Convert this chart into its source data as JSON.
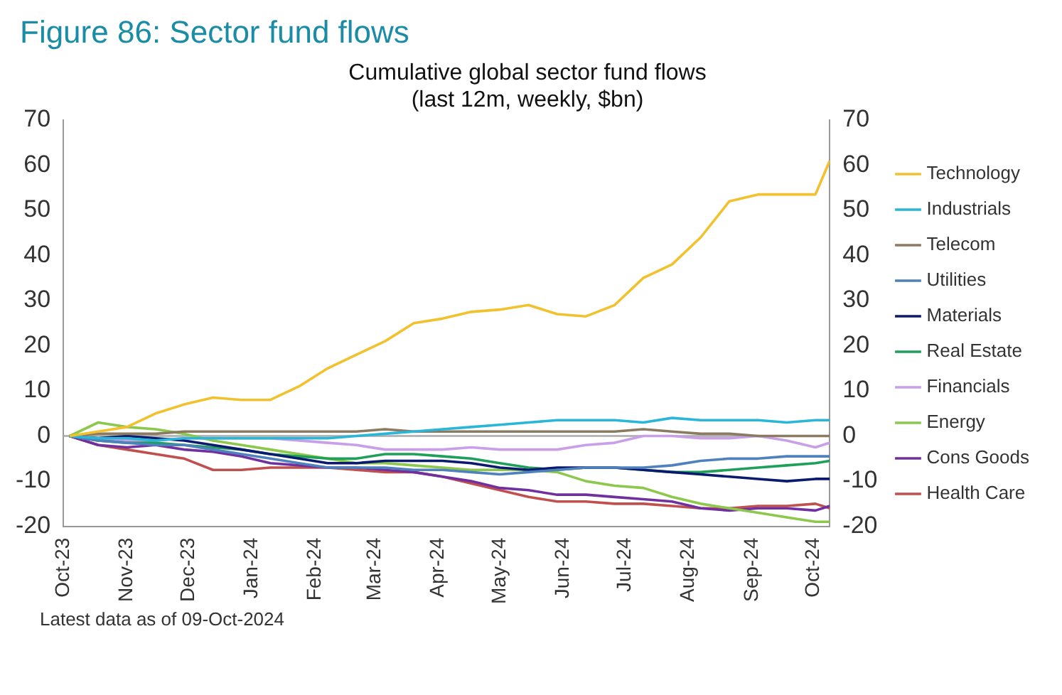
{
  "chart_data": {
    "type": "line",
    "title": "Figure 86: Sector fund flows",
    "subtitle": "Cumulative global sector fund flows\n(last 12m, weekly, $bn)",
    "annotations": [
      "Latest data as of 09-Oct-2024"
    ],
    "x": [
      "2023-10-04",
      "2023-10-18",
      "2023-11-01",
      "2023-11-15",
      "2023-11-29",
      "2023-12-13",
      "2023-12-27",
      "2024-01-10",
      "2024-01-24",
      "2024-02-07",
      "2024-02-21",
      "2024-03-06",
      "2024-03-20",
      "2024-04-03",
      "2024-04-17",
      "2024-05-01",
      "2024-05-15",
      "2024-05-29",
      "2024-06-12",
      "2024-06-26",
      "2024-07-10",
      "2024-07-24",
      "2024-08-07",
      "2024-08-21",
      "2024-09-04",
      "2024-09-18",
      "2024-10-02",
      "2024-10-09"
    ],
    "xlim": [
      "2023-10-01",
      "2024-10-09"
    ],
    "xticks": [
      {
        "value": "2023-10-01",
        "label": "Oct-23"
      },
      {
        "value": "2023-11-01",
        "label": "Nov-23"
      },
      {
        "value": "2023-12-01",
        "label": "Dec-23"
      },
      {
        "value": "2024-01-01",
        "label": "Jan-24"
      },
      {
        "value": "2024-02-01",
        "label": "Feb-24"
      },
      {
        "value": "2024-03-01",
        "label": "Mar-24"
      },
      {
        "value": "2024-04-01",
        "label": "Apr-24"
      },
      {
        "value": "2024-05-01",
        "label": "May-24"
      },
      {
        "value": "2024-06-01",
        "label": "Jun-24"
      },
      {
        "value": "2024-07-01",
        "label": "Jul-24"
      },
      {
        "value": "2024-08-01",
        "label": "Aug-24"
      },
      {
        "value": "2024-09-01",
        "label": "Sep-24"
      },
      {
        "value": "2024-10-01",
        "label": "Oct-24"
      }
    ],
    "ylim": [
      -20,
      70
    ],
    "yticks": [
      -20,
      -10,
      0,
      10,
      20,
      30,
      40,
      50,
      60,
      70
    ],
    "y2lim": [
      -20,
      70
    ],
    "y2ticks": [
      -20,
      -10,
      0,
      10,
      20,
      30,
      40,
      50,
      60,
      70
    ],
    "grid": false,
    "legend": "right",
    "marker": "none",
    "line_style": "solid",
    "ref_lines": [
      {
        "axis": "y",
        "value": 0,
        "color": "#aaaaaa"
      }
    ],
    "series": [
      {
        "name": "Technology",
        "color": "#f2c12e",
        "values": [
          0,
          1,
          2,
          5,
          7,
          8.5,
          8,
          8,
          11,
          15,
          18,
          21,
          25,
          26,
          27.5,
          28,
          29,
          27,
          26.5,
          29,
          35,
          38,
          44,
          52,
          53.5,
          53.5,
          53.5,
          61
        ]
      },
      {
        "name": "Industrials",
        "color": "#29b6d9",
        "values": [
          0,
          -0.5,
          -0.5,
          -1,
          -0.5,
          -0.5,
          -0.5,
          -0.5,
          -0.5,
          -0.5,
          0,
          0.5,
          1,
          1.5,
          2,
          2.5,
          3,
          3.5,
          3.5,
          3.5,
          3,
          4,
          3.5,
          3.5,
          3.5,
          3,
          3.5,
          3.5
        ]
      },
      {
        "name": "Telecom",
        "color": "#8b7b62",
        "values": [
          0,
          0.5,
          0.5,
          0.5,
          1,
          1,
          1,
          1,
          1,
          1,
          1,
          1.5,
          1,
          1,
          1,
          1,
          1,
          1,
          1,
          1,
          1.5,
          1,
          0.5,
          0.5,
          0,
          0,
          0,
          0
        ]
      },
      {
        "name": "Utilities",
        "color": "#4f81bd",
        "values": [
          0,
          -1,
          -1.5,
          -2,
          -2,
          -3,
          -4,
          -5,
          -6,
          -7,
          -7,
          -7,
          -7.5,
          -7.5,
          -8,
          -8.5,
          -8,
          -7.5,
          -7,
          -7,
          -7,
          -6.5,
          -5.5,
          -5,
          -5,
          -4.5,
          -4.5,
          -4.5
        ]
      },
      {
        "name": "Materials",
        "color": "#0a1a6e",
        "values": [
          0,
          -0.5,
          0,
          -0.5,
          -1,
          -2,
          -3,
          -4,
          -5,
          -6,
          -6,
          -5.5,
          -5.5,
          -5.5,
          -6,
          -7,
          -7.5,
          -7,
          -7,
          -7,
          -7.5,
          -8,
          -8.5,
          -9,
          -9.5,
          -10,
          -9.5,
          -9.5
        ]
      },
      {
        "name": "Real Estate",
        "color": "#1fa05a",
        "values": [
          0,
          -1,
          -1.5,
          -1.5,
          -2,
          -2.5,
          -3,
          -4,
          -4.5,
          -5,
          -5,
          -4,
          -4,
          -4.5,
          -5,
          -6,
          -7,
          -7.5,
          -7,
          -7,
          -7.5,
          -8,
          -8,
          -7.5,
          -7,
          -6.5,
          -6,
          -5.5
        ]
      },
      {
        "name": "Financials",
        "color": "#c9a0e8",
        "values": [
          0,
          -1,
          -1,
          -1,
          -0.5,
          -0.5,
          -0.5,
          -0.5,
          -1,
          -1.5,
          -2,
          -3,
          -3,
          -3,
          -2.5,
          -3,
          -3,
          -3,
          -2,
          -1.5,
          0,
          0,
          -0.5,
          -0.5,
          0,
          -1,
          -2.5,
          -1.5
        ]
      },
      {
        "name": "Energy",
        "color": "#8cc84b",
        "values": [
          0,
          3,
          2,
          1.5,
          0.5,
          -1,
          -2,
          -3,
          -4,
          -5,
          -6,
          -6,
          -6.5,
          -7,
          -7.5,
          -7.5,
          -7.5,
          -8,
          -10,
          -11,
          -11.5,
          -13.5,
          -15,
          -16,
          -17,
          -18,
          -19,
          -19
        ]
      },
      {
        "name": "Cons Goods",
        "color": "#7030a0",
        "values": [
          0,
          -2,
          -2.5,
          -2,
          -3,
          -3.5,
          -4.5,
          -6,
          -6.5,
          -7,
          -7,
          -7.5,
          -8,
          -9,
          -10,
          -11.5,
          -12,
          -13,
          -13,
          -13.5,
          -14,
          -14.5,
          -16,
          -16.5,
          -16,
          -16,
          -16.5,
          -15.5
        ]
      },
      {
        "name": "Health Care",
        "color": "#c0504d",
        "values": [
          0,
          -2,
          -3,
          -4,
          -5,
          -7.5,
          -7.5,
          -7,
          -7,
          -7,
          -7.5,
          -8,
          -8,
          -9,
          -10.5,
          -12,
          -13.5,
          -14.5,
          -14.5,
          -15,
          -15,
          -15.5,
          -16,
          -16,
          -15.5,
          -15.5,
          -15,
          -16
        ]
      }
    ]
  }
}
